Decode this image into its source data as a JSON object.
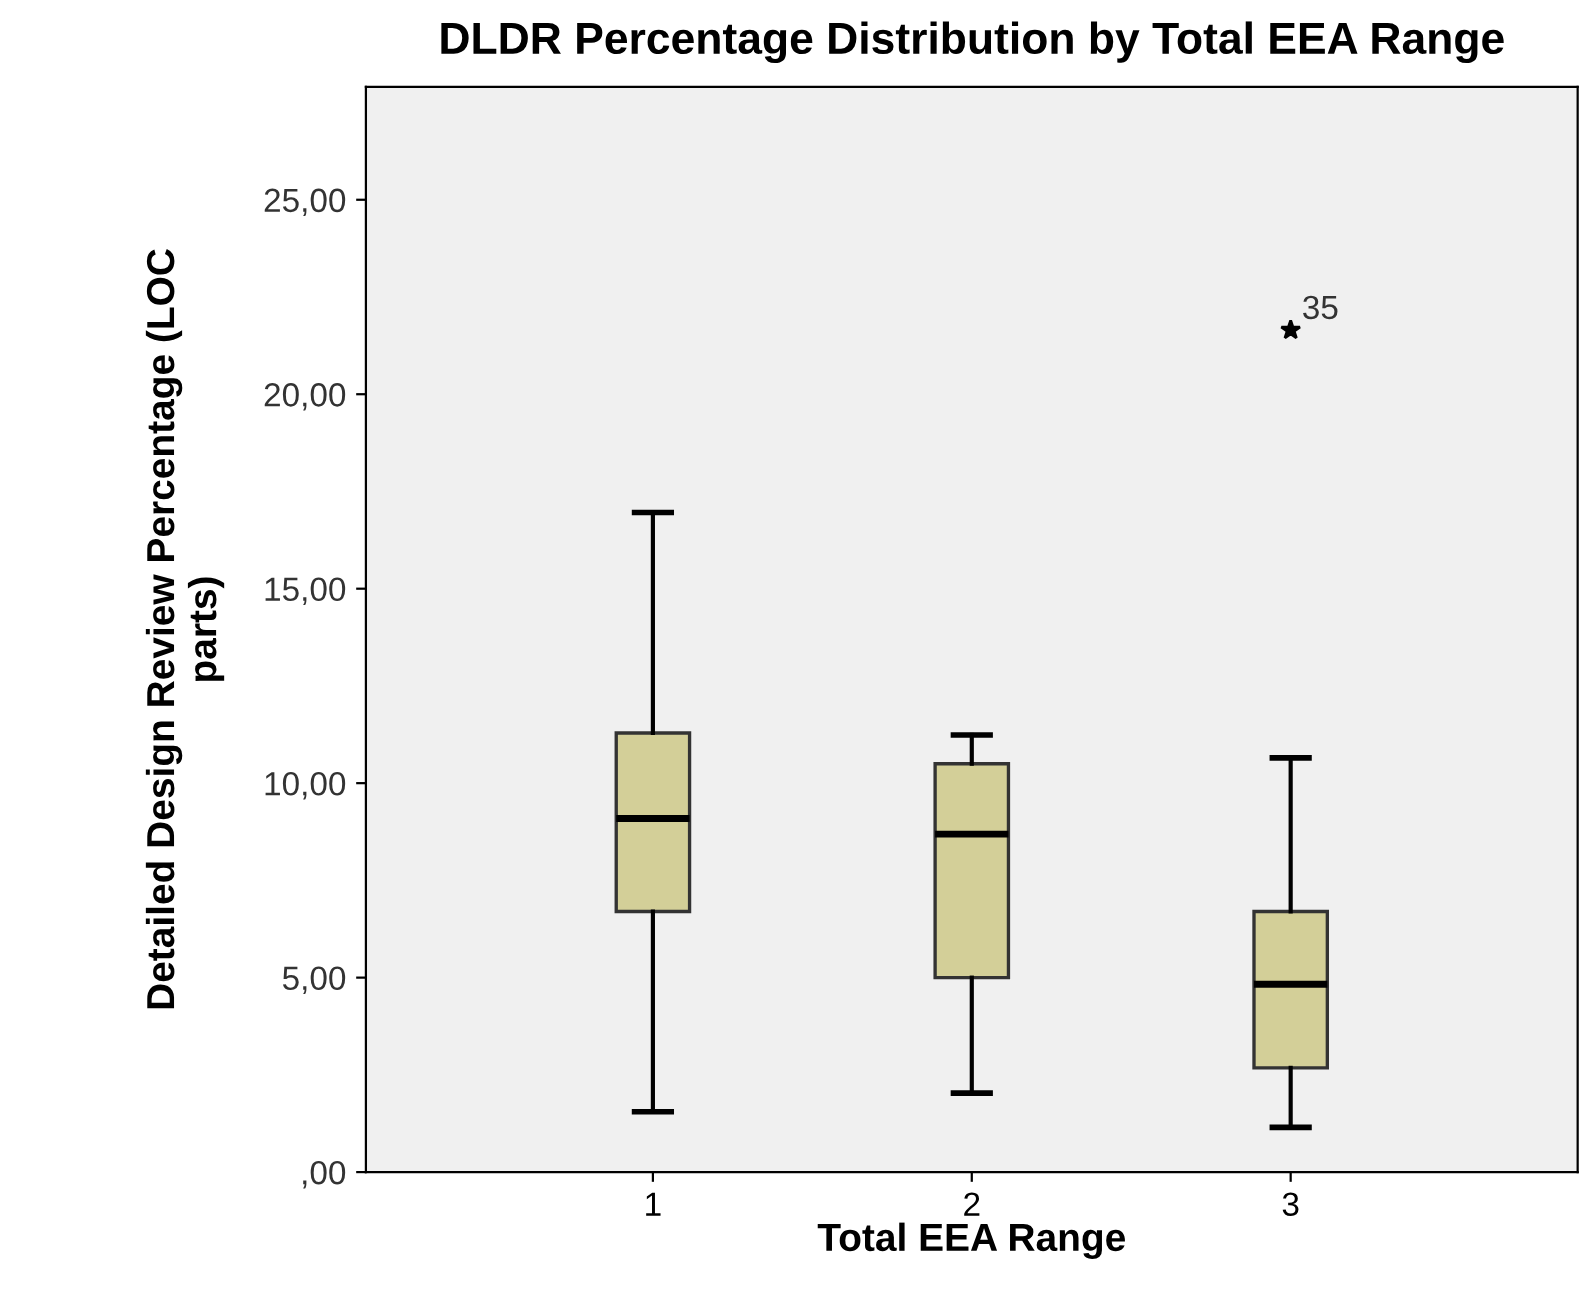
{
  "chart_data": {
    "type": "box",
    "title": "DLDR Percentage Distribution by Total EEA Range",
    "xlabel": "Total EEA Range",
    "ylabel": "Detailed Design Review Percentage (LOC\nparts)",
    "categories": [
      "1",
      "2",
      "3"
    ],
    "color": "#d3cf98",
    "marker": "star",
    "grid": false,
    "legend": false,
    "boxes": [
      {
        "low": 1.55,
        "q1": 6.7,
        "median": 9.09,
        "q3": 11.29,
        "high": 16.96
      },
      {
        "low": 2.03,
        "q1": 5.0,
        "median": 8.69,
        "q3": 10.5,
        "high": 11.24
      },
      {
        "low": 1.15,
        "q1": 2.68,
        "median": 4.83,
        "q3": 6.7,
        "high": 10.65,
        "outliers": [
          21.65
        ]
      }
    ],
    "annotations": [
      "35"
    ],
    "ylim": [
      0,
      27.9
    ],
    "yticks": [
      {
        "value": 0,
        "label": ",00"
      },
      {
        "value": 5,
        "label": "5,00"
      },
      {
        "value": 10,
        "label": "10,00"
      },
      {
        "value": 15,
        "label": "15,00"
      },
      {
        "value": 20,
        "label": "20,00"
      },
      {
        "value": 25,
        "label": "25,00"
      }
    ]
  }
}
